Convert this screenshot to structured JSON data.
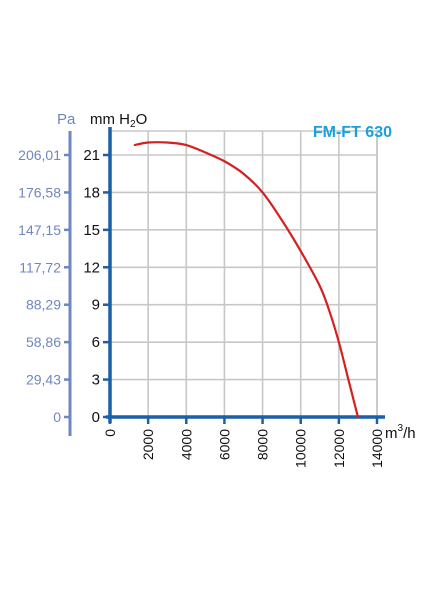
{
  "colors": {
    "pa_axis": "#6f86bf",
    "main_axis": "#1b5fa8",
    "grid": "#c7c7c7",
    "curve": "#d42020",
    "title": "#1aa0dc"
  },
  "chart_data": {
    "type": "line",
    "title": "FM-FT 630",
    "xlabel": "m³/h",
    "x_unit_base": "m",
    "x_unit_exp": "3",
    "x_unit_suffix": "/h",
    "ylabel": "mm H₂O",
    "y_unit_pre": "mm H",
    "y_unit_sub": "2",
    "y_unit_post": "O",
    "y2label": "Pa",
    "xlim": [
      0,
      14000
    ],
    "ylim": [
      0,
      22.5
    ],
    "grid": true,
    "x_ticks": [
      "0",
      "2000",
      "4000",
      "6000",
      "8000",
      "10000",
      "12000",
      "14000"
    ],
    "x_tick_values": [
      0,
      2000,
      4000,
      6000,
      8000,
      10000,
      12000,
      14000
    ],
    "y_ticks": [
      "0",
      "3",
      "6",
      "9",
      "12",
      "15",
      "18",
      "21"
    ],
    "y_tick_values": [
      0,
      3,
      6,
      9,
      12,
      15,
      18,
      21
    ],
    "pa_ticks": [
      "0",
      "29,43",
      "58,86",
      "88,29",
      "117,72",
      "147,15",
      "176,58",
      "206,01"
    ],
    "series": [
      {
        "x": [
          1300,
          2000,
          3000,
          4000,
          5000,
          6000,
          7000,
          8000,
          9000,
          10000,
          11000,
          11500,
          12000,
          12500,
          13000
        ],
        "y": [
          21.8,
          22.0,
          22.0,
          21.8,
          21.2,
          20.5,
          19.5,
          18.0,
          15.8,
          13.3,
          10.5,
          8.5,
          6.0,
          3.0,
          0
        ]
      }
    ]
  }
}
